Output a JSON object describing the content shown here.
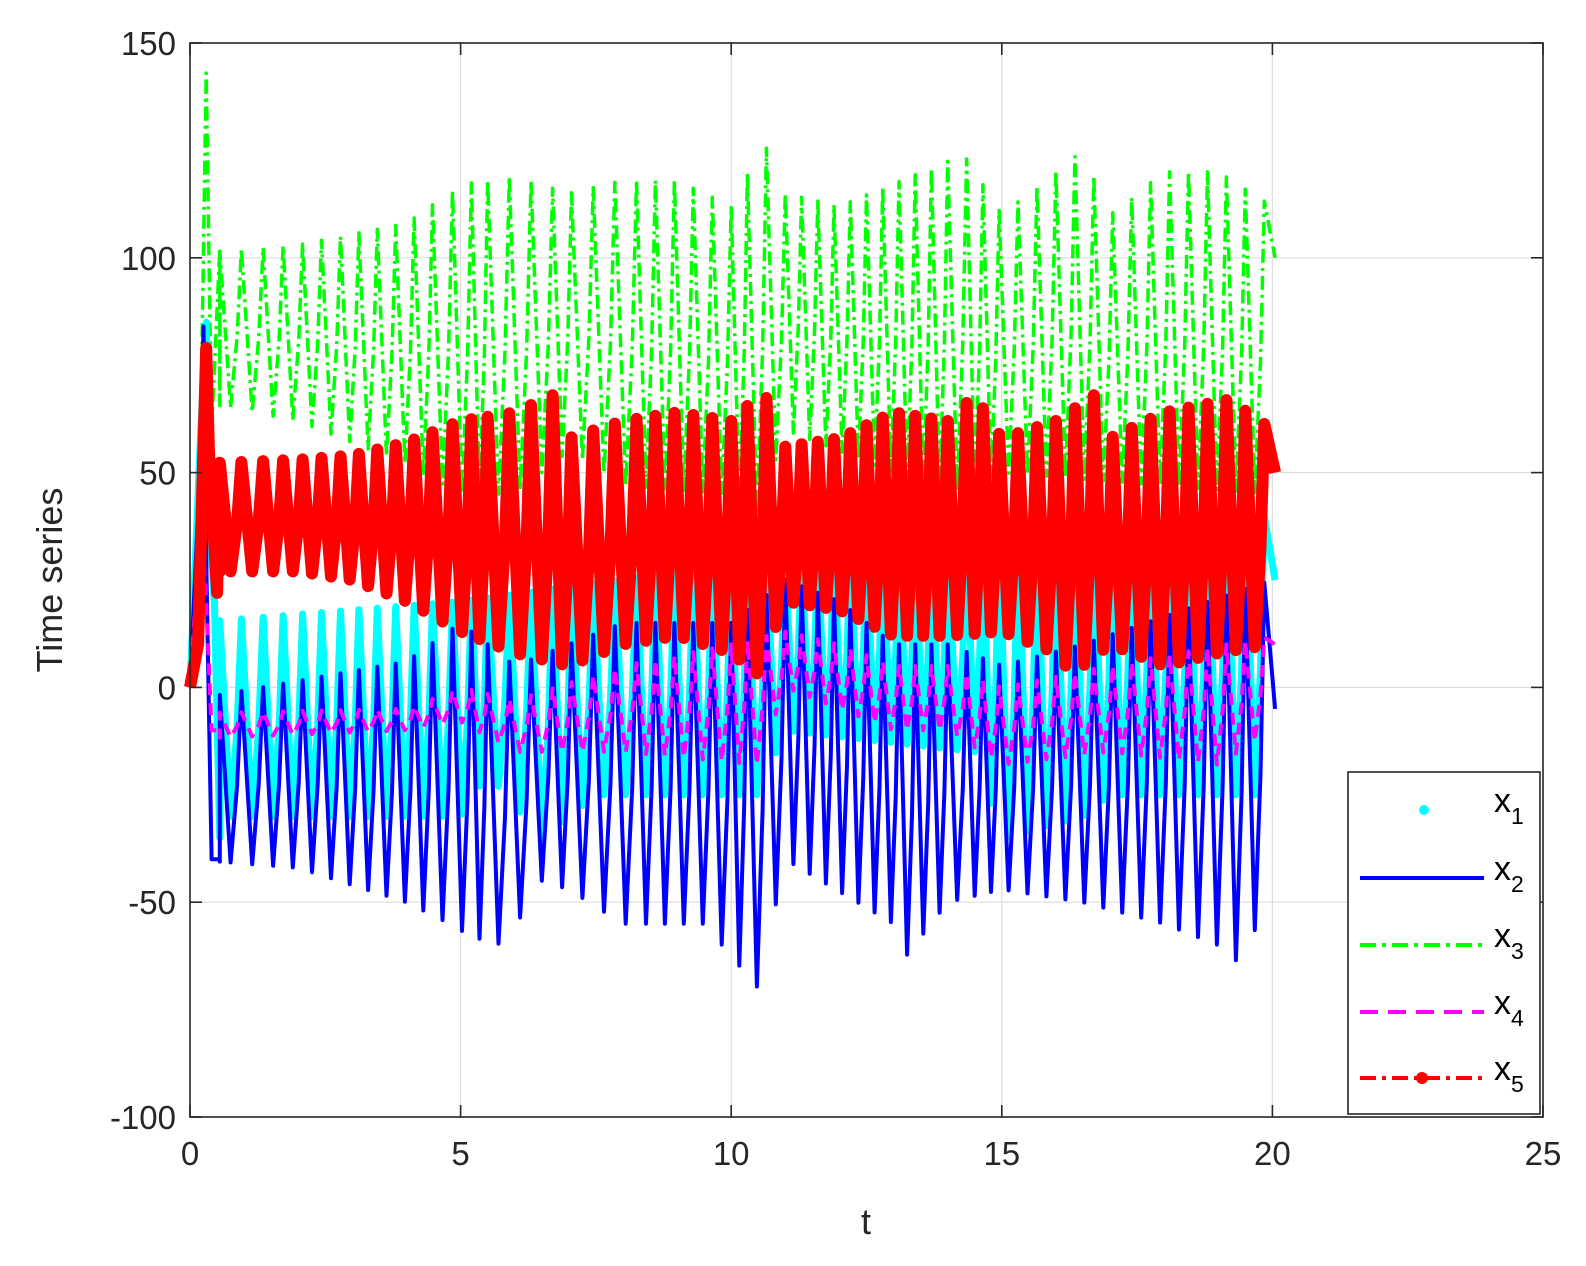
{
  "chart_data": {
    "type": "line",
    "xlabel": "t",
    "ylabel": "Time series",
    "xlim": [
      0,
      25
    ],
    "ylim": [
      -100,
      150
    ],
    "xticks": [
      0,
      5,
      10,
      15,
      20,
      25
    ],
    "yticks": [
      -100,
      -50,
      0,
      50,
      100,
      150
    ],
    "xtick_labels": [
      "0",
      "5",
      "10",
      "15",
      "20",
      "25"
    ],
    "ytick_labels": [
      "-100",
      "-50",
      "0",
      "50",
      "100",
      "150"
    ],
    "grid": true,
    "legend_position": "bottom-right",
    "peak_times": [
      0.55,
      0.95,
      1.35,
      1.72,
      2.08,
      2.43,
      2.78,
      3.12,
      3.46,
      3.8,
      4.14,
      4.48,
      4.85,
      5.2,
      5.5,
      5.9,
      6.3,
      6.7,
      7.05,
      7.45,
      7.85,
      8.25,
      8.6,
      8.95,
      9.3,
      9.65,
      10.0,
      10.3,
      10.65,
      11.0,
      11.3,
      11.6,
      11.9,
      12.2,
      12.5,
      12.8,
      13.1,
      13.4,
      13.7,
      14.0,
      14.35,
      14.65,
      14.95,
      15.3,
      15.65,
      16.0,
      16.35,
      16.7,
      17.05,
      17.4,
      17.75,
      18.1,
      18.45,
      18.8,
      19.15,
      19.5,
      19.85
    ],
    "series": [
      {
        "name": "x1",
        "label_main": "x",
        "label_sub": "1",
        "color": "#00ffff",
        "style": "dot",
        "transient": [
          [
            0,
            0
          ],
          [
            0.2,
            60
          ],
          [
            0.3,
            85
          ],
          [
            0.35,
            40
          ],
          [
            0.45,
            20
          ],
          [
            0.55,
            -35
          ]
        ],
        "baseline": [
          [
            0,
            -30
          ],
          [
            5,
            -30
          ],
          [
            5.5,
            -20
          ],
          [
            6.5,
            -35
          ],
          [
            7.5,
            -25
          ],
          [
            10.5,
            -25
          ],
          [
            11,
            -10
          ],
          [
            14.5,
            -15
          ],
          [
            15,
            -35
          ],
          [
            16.5,
            -30
          ],
          [
            17,
            -25
          ],
          [
            20,
            -25
          ]
        ],
        "amplitude": [
          [
            0,
            15
          ],
          [
            5,
            20
          ],
          [
            11,
            30
          ],
          [
            20,
            40
          ]
        ],
        "end": 25
      },
      {
        "name": "x2",
        "label_main": "x",
        "label_sub": "2",
        "color": "#0000ff",
        "style": "solid",
        "transient": [
          [
            0,
            0
          ],
          [
            0.2,
            55
          ],
          [
            0.25,
            84
          ],
          [
            0.3,
            30
          ],
          [
            0.4,
            -40
          ],
          [
            0.55,
            -40
          ]
        ],
        "baseline": [
          [
            0,
            -40
          ],
          [
            2,
            -42
          ],
          [
            4,
            -50
          ],
          [
            4.8,
            -55
          ],
          [
            5.2,
            -58
          ],
          [
            5.8,
            -60
          ],
          [
            6.5,
            -45
          ],
          [
            7,
            -47
          ],
          [
            8,
            -55
          ],
          [
            9.5,
            -55
          ],
          [
            10.5,
            -70
          ],
          [
            11,
            -40
          ],
          [
            13,
            -55
          ],
          [
            13.2,
            -63
          ],
          [
            14,
            -50
          ],
          [
            15,
            -47
          ],
          [
            16.5,
            -50
          ],
          [
            18,
            -55
          ],
          [
            19,
            -60
          ],
          [
            19.3,
            -64
          ],
          [
            20,
            -50
          ]
        ],
        "amplitude": [
          [
            0,
            -3
          ],
          [
            4,
            6
          ],
          [
            5,
            15
          ],
          [
            6,
            5
          ],
          [
            8,
            15
          ],
          [
            10,
            15
          ],
          [
            11,
            25
          ],
          [
            12,
            20
          ],
          [
            13,
            10
          ],
          [
            14,
            10
          ],
          [
            15,
            5
          ],
          [
            16.5,
            10
          ],
          [
            20,
            25
          ]
        ],
        "end": -5
      },
      {
        "name": "x3",
        "label_main": "x",
        "label_sub": "3",
        "color": "#00ff00",
        "style": "dashdot",
        "transient": [
          [
            0,
            0
          ],
          [
            0.15,
            20
          ],
          [
            0.3,
            143
          ],
          [
            0.4,
            60
          ],
          [
            0.55,
            102
          ]
        ],
        "baseline": [
          [
            0,
            67
          ],
          [
            2,
            62
          ],
          [
            4,
            52
          ],
          [
            5,
            45
          ],
          [
            6,
            45
          ],
          [
            7,
            55
          ],
          [
            8,
            47
          ],
          [
            10,
            45
          ],
          [
            10.5,
            40
          ],
          [
            11,
            60
          ],
          [
            13,
            50
          ],
          [
            14,
            45
          ],
          [
            15,
            50
          ],
          [
            17,
            48
          ],
          [
            20,
            45
          ]
        ],
        "amplitude": [
          [
            0,
            101
          ],
          [
            2,
            103
          ],
          [
            4,
            108
          ],
          [
            5,
            117
          ],
          [
            6,
            119
          ],
          [
            7,
            115
          ],
          [
            8,
            118
          ],
          [
            9,
            118
          ],
          [
            10,
            112
          ],
          [
            10.6,
            127
          ],
          [
            11,
            115
          ],
          [
            12,
            112
          ],
          [
            14.3,
            124
          ],
          [
            15,
            110
          ],
          [
            16.5,
            125
          ],
          [
            17,
            110
          ],
          [
            18,
            120
          ],
          [
            19,
            120
          ],
          [
            20,
            112
          ]
        ],
        "end": 100
      },
      {
        "name": "x4",
        "label_main": "x",
        "label_sub": "4",
        "color": "#ff00ff",
        "style": "dashed",
        "transient": [
          [
            0,
            0
          ],
          [
            0.2,
            40
          ],
          [
            0.3,
            20
          ],
          [
            0.4,
            -10
          ],
          [
            0.55,
            -10
          ]
        ],
        "baseline": [
          [
            0,
            -12
          ],
          [
            4,
            -10
          ],
          [
            5,
            -8
          ],
          [
            6,
            -15
          ],
          [
            7,
            -15
          ],
          [
            8,
            -15
          ],
          [
            10.5,
            -18
          ],
          [
            11,
            0
          ],
          [
            13,
            -10
          ],
          [
            14,
            -10
          ],
          [
            15,
            -18
          ],
          [
            17,
            -15
          ],
          [
            19,
            -18
          ],
          [
            20,
            -10
          ]
        ],
        "amplitude": [
          [
            0,
            -6
          ],
          [
            4,
            -5
          ],
          [
            5,
            0
          ],
          [
            6,
            -3
          ],
          [
            8,
            5
          ],
          [
            10,
            10
          ],
          [
            11,
            13
          ],
          [
            12,
            10
          ],
          [
            13,
            5
          ],
          [
            14,
            5
          ],
          [
            15,
            0
          ],
          [
            17,
            5
          ],
          [
            20,
            12
          ]
        ],
        "end": 10
      },
      {
        "name": "x5",
        "label_main": "x",
        "label_sub": "5",
        "color": "#ff0000",
        "style": "dashdot-marker",
        "transient": [
          [
            0,
            0
          ],
          [
            0.15,
            10
          ],
          [
            0.3,
            79
          ],
          [
            0.35,
            55
          ],
          [
            0.5,
            22
          ],
          [
            0.55,
            52
          ]
        ],
        "baseline": [
          [
            0,
            27
          ],
          [
            2,
            27
          ],
          [
            3,
            25
          ],
          [
            4,
            20
          ],
          [
            5,
            13
          ],
          [
            6,
            8
          ],
          [
            7,
            5
          ],
          [
            8,
            10
          ],
          [
            9,
            12
          ],
          [
            10,
            8
          ],
          [
            10.5,
            3
          ],
          [
            11,
            20
          ],
          [
            12,
            18
          ],
          [
            13,
            12
          ],
          [
            14,
            12
          ],
          [
            15,
            13
          ],
          [
            16,
            8
          ],
          [
            16.3,
            3
          ],
          [
            17,
            10
          ],
          [
            18,
            5
          ],
          [
            19,
            8
          ],
          [
            20,
            10
          ]
        ],
        "amplitude": [
          [
            0,
            52
          ],
          [
            2,
            53
          ],
          [
            3,
            54
          ],
          [
            4,
            57
          ],
          [
            5,
            62
          ],
          [
            6,
            64
          ],
          [
            6.7,
            68
          ],
          [
            7,
            58
          ],
          [
            8,
            62
          ],
          [
            9,
            64
          ],
          [
            10,
            62
          ],
          [
            10.6,
            69
          ],
          [
            11,
            56
          ],
          [
            12,
            58
          ],
          [
            13,
            64
          ],
          [
            14,
            62
          ],
          [
            14.5,
            68
          ],
          [
            15,
            58
          ],
          [
            16,
            62
          ],
          [
            16.7,
            68
          ],
          [
            17,
            58
          ],
          [
            18,
            64
          ],
          [
            19.2,
            67
          ],
          [
            20,
            60
          ]
        ],
        "end": 50
      }
    ]
  }
}
